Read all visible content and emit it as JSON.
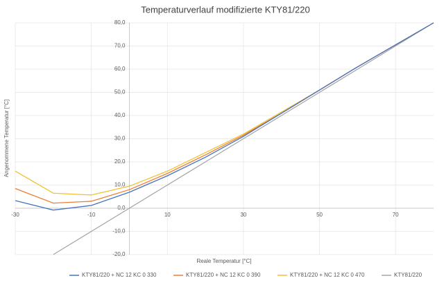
{
  "chart_data": {
    "type": "line",
    "title": "Temperaturverlauf modifizierte KTY81/220",
    "x_label": "Reale Temperatur [°C]",
    "y_label": "Angenommene Temperatur [°C]",
    "x": [
      -30,
      -20,
      -10,
      0,
      10,
      20,
      30,
      40,
      50,
      60,
      70,
      80
    ],
    "series": [
      {
        "name": "KTY81/220 +  NC 12 KC 0 330",
        "color": "#4472c4",
        "values": [
          3.3,
          -0.8,
          1.2,
          6.9,
          14,
          22,
          31,
          41,
          51,
          61,
          70.5,
          80
        ]
      },
      {
        "name": "KTY81/220 +  NC 12 KC 0 390",
        "color": "#ed7d31",
        "values": [
          8.5,
          2.2,
          3,
          8,
          15,
          23,
          31.5,
          41,
          51,
          61,
          70.5,
          80
        ]
      },
      {
        "name": "KTY81/220 +  NC 12 KC 0 470",
        "color": "#f2c12e",
        "values": [
          16,
          6.5,
          5.7,
          9.5,
          16,
          24,
          32,
          41.5,
          51,
          61,
          70.5,
          80
        ]
      },
      {
        "name": "KTY81/220",
        "color": "#a5a5a5",
        "values": [
          null,
          -20,
          -10,
          0,
          10,
          20,
          30,
          40,
          50,
          60,
          70,
          80
        ]
      }
    ],
    "xlim": [
      -30,
      80
    ],
    "xticks": [
      -30,
      -10,
      10,
      30,
      50,
      70
    ],
    "ylim": [
      -20,
      80
    ],
    "yticks": [
      {
        "value": -20,
        "label": "-20,0"
      },
      {
        "value": -10,
        "label": "-10,0"
      },
      {
        "value": 0,
        "label": "0,0"
      },
      {
        "value": 10,
        "label": "10,0"
      },
      {
        "value": 20,
        "label": "20,0"
      },
      {
        "value": 30,
        "label": "30,0"
      },
      {
        "value": 40,
        "label": "40,0"
      },
      {
        "value": 50,
        "label": "50,0"
      },
      {
        "value": 60,
        "label": "60,0"
      },
      {
        "value": 70,
        "label": "70,0"
      },
      {
        "value": 80,
        "label": "80,0"
      }
    ],
    "grid": true,
    "legend": "bottom"
  }
}
